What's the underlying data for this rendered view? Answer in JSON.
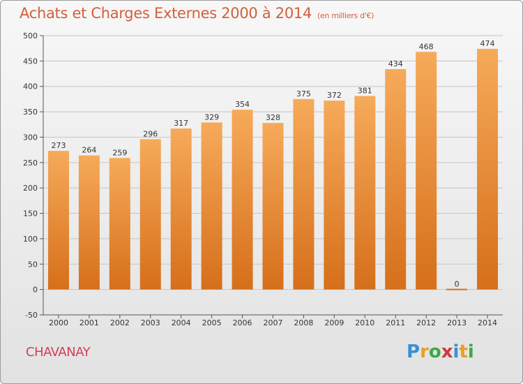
{
  "title": "Achats et Charges Externes 2000 à 2014",
  "subtitle": "(en milliers d'€)",
  "place": "CHAVANAY",
  "brand": {
    "letters": [
      "P",
      "r",
      "o",
      "x",
      "i",
      "t",
      "i"
    ],
    "colors": [
      "#3a8fd0",
      "#e8a020",
      "#3aa84a",
      "#d03a3a",
      "#3a8fd0",
      "#e8a020",
      "#3aa84a"
    ]
  },
  "colors": {
    "bar_top": "#f6aa5a",
    "bar_bottom": "#d66f1a",
    "grid": "#c4c4c4"
  },
  "chart_data": {
    "type": "bar",
    "title": "Achats et Charges Externes 2000 à 2014",
    "subtitle": "(en milliers d'€)",
    "categories": [
      "2000",
      "2001",
      "2002",
      "2003",
      "2004",
      "2005",
      "2006",
      "2007",
      "2008",
      "2009",
      "2010",
      "2011",
      "2012",
      "2013",
      "2014"
    ],
    "values": [
      273,
      264,
      259,
      296,
      317,
      329,
      354,
      328,
      375,
      372,
      381,
      434,
      468,
      0,
      474
    ],
    "ylim": [
      -50,
      500
    ],
    "yticks": [
      -50,
      0,
      50,
      100,
      150,
      200,
      250,
      300,
      350,
      400,
      450,
      500
    ],
    "grid": true
  }
}
